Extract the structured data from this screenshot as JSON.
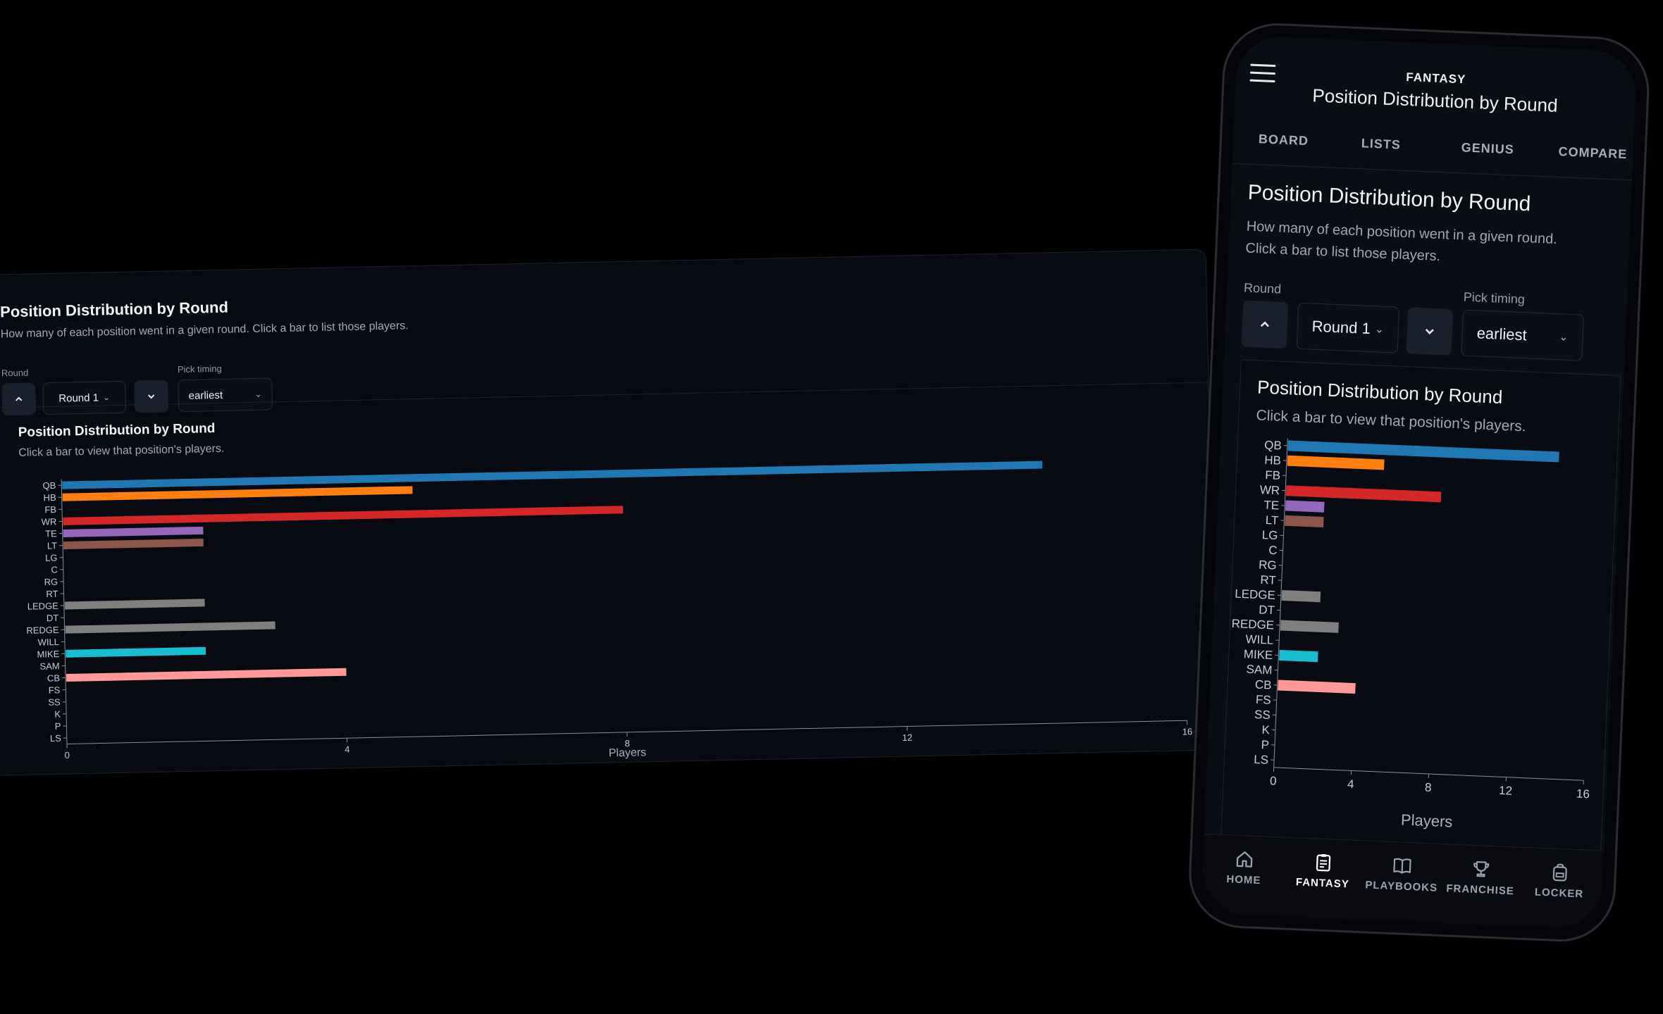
{
  "page": {
    "title": "Position Distribution by Round",
    "description": "How many of each position went in a given round. Click a bar to list those players.",
    "round_label": "Round",
    "round_value": "Round 1",
    "timing_label": "Pick timing",
    "timing_value": "earliest"
  },
  "mobile": {
    "app_label": "FANTASY",
    "header_title": "Position Distribution by Round",
    "tabs": [
      {
        "label": "BOARD"
      },
      {
        "label": "LISTS"
      },
      {
        "label": "GENIUS"
      },
      {
        "label": "COMPARE"
      }
    ],
    "description_line1": "How many of each position went in a given round.",
    "description_line2": "Click a bar to list those players.",
    "nav": [
      {
        "label": "HOME",
        "icon": "home-icon"
      },
      {
        "label": "FANTASY",
        "icon": "clipboard-icon",
        "active": true
      },
      {
        "label": "PLAYBOOKS",
        "icon": "book-icon"
      },
      {
        "label": "FRANCHISE",
        "icon": "trophy-icon"
      },
      {
        "label": "LOCKER",
        "icon": "locker-icon"
      }
    ]
  },
  "chart_data": {
    "type": "bar",
    "orientation": "horizontal",
    "title": "Position Distribution by Round",
    "subtitle": "Click a bar to view that position's players.",
    "xlabel": "Players",
    "xlim": [
      0,
      16
    ],
    "xticks": [
      0,
      4,
      8,
      12,
      16
    ],
    "categories": [
      "QB",
      "HB",
      "FB",
      "WR",
      "TE",
      "LT",
      "LG",
      "C",
      "RG",
      "RT",
      "LEDGE",
      "DT",
      "REDGE",
      "WILL",
      "MIKE",
      "SAM",
      "CB",
      "FS",
      "SS",
      "K",
      "P",
      "LS"
    ],
    "values": [
      14,
      5,
      0,
      8,
      2,
      2,
      0,
      0,
      0,
      0,
      2,
      0,
      3,
      0,
      2,
      0,
      4,
      0,
      0,
      0,
      0,
      0
    ],
    "colors": [
      "#1f77b4",
      "#ff7f0e",
      "#2ca02c",
      "#d62728",
      "#9467bd",
      "#8c564b",
      "#e377c2",
      "#7f7f7f",
      "#bcbd22",
      "#17becf",
      "#7f7f7f",
      "#7f7f7f",
      "#7f7f7f",
      "#7f7f7f",
      "#17becf",
      "#7f7f7f",
      "#ff9896",
      "#7f7f7f",
      "#7f7f7f",
      "#7f7f7f",
      "#7f7f7f",
      "#7f7f7f"
    ],
    "grid": false
  }
}
